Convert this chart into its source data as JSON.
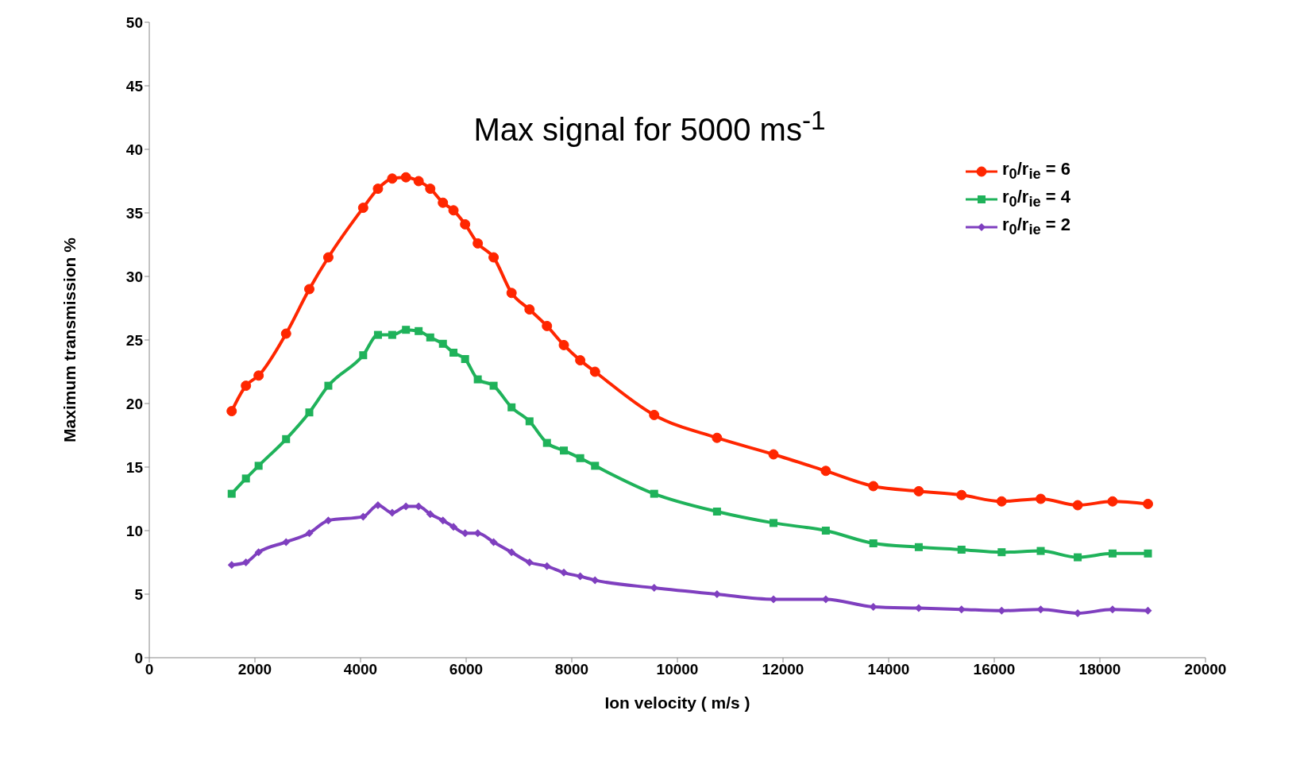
{
  "chart_data": {
    "type": "line",
    "title": "Max signal for 5000 ms$^{-1}$",
    "xlabel": "Ion velocity ( m/s )",
    "ylabel": "Maximum transmission %",
    "x": [
      1560,
      1830,
      2070,
      2590,
      3030,
      3390,
      4050,
      4330,
      4600,
      4860,
      5100,
      5320,
      5560,
      5760,
      5980,
      6220,
      6520,
      6860,
      7200,
      7530,
      7850,
      8160,
      8440,
      9560,
      10750,
      11820,
      12810,
      13710,
      14570,
      15380,
      16140,
      16880,
      17580,
      18240,
      18910
    ],
    "series": [
      {
        "name": "r$_{0}$/r$_{ie}$ = 6",
        "color": "#ff2600",
        "marker": "circle",
        "values": [
          19.4,
          21.4,
          22.2,
          25.5,
          29.0,
          31.5,
          35.4,
          36.9,
          37.7,
          37.8,
          37.5,
          36.9,
          35.8,
          35.2,
          34.1,
          32.6,
          31.5,
          28.7,
          27.4,
          26.1,
          24.6,
          23.4,
          22.5,
          19.1,
          17.3,
          16.0,
          14.7,
          13.5,
          13.1,
          12.8,
          12.3,
          12.5,
          12.0,
          12.3,
          12.1
        ]
      },
      {
        "name": "r$_{0}$/r$_{ie}$ = 4",
        "color": "#1fb25a",
        "marker": "square",
        "values": [
          12.9,
          14.1,
          15.1,
          17.2,
          19.3,
          21.4,
          23.8,
          25.4,
          25.4,
          25.8,
          25.7,
          25.2,
          24.7,
          24.0,
          23.5,
          21.9,
          21.4,
          19.7,
          18.6,
          16.9,
          16.3,
          15.7,
          15.1,
          12.9,
          11.5,
          10.6,
          10.0,
          9.0,
          8.7,
          8.5,
          8.3,
          8.4,
          7.9,
          8.2,
          8.2
        ]
      },
      {
        "name": "r$_{0}$/r$_{ie}$ = 2",
        "color": "#7f3fbf",
        "marker": "diamond",
        "values": [
          7.3,
          7.5,
          8.3,
          9.1,
          9.8,
          10.8,
          11.1,
          12.0,
          11.4,
          11.9,
          11.9,
          11.3,
          10.8,
          10.3,
          9.8,
          9.8,
          9.1,
          8.3,
          7.5,
          7.2,
          6.7,
          6.4,
          6.1,
          5.5,
          5.0,
          4.6,
          4.6,
          4.0,
          3.9,
          3.8,
          3.7,
          3.8,
          3.5,
          3.8,
          3.7
        ]
      }
    ],
    "xlim": [
      0,
      20000
    ],
    "xticks": [
      0,
      2000,
      4000,
      6000,
      8000,
      10000,
      12000,
      14000,
      16000,
      18000,
      20000
    ],
    "ylim": [
      0,
      50
    ],
    "yticks": [
      0,
      5,
      10,
      15,
      20,
      25,
      30,
      35,
      40,
      45,
      50
    ],
    "grid": false,
    "legend": "top right",
    "line_style": "solid"
  }
}
